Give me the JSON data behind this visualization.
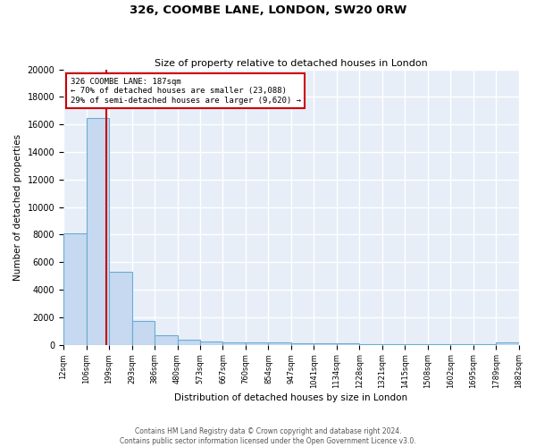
{
  "title": "326, COOMBE LANE, LONDON, SW20 0RW",
  "subtitle": "Size of property relative to detached houses in London",
  "xlabel": "Distribution of detached houses by size in London",
  "ylabel": "Number of detached properties",
  "bin_edges": [
    12,
    106,
    199,
    293,
    386,
    480,
    573,
    667,
    760,
    854,
    947,
    1041,
    1134,
    1228,
    1321,
    1415,
    1508,
    1602,
    1695,
    1789,
    1882
  ],
  "bar_heights": [
    8100,
    16500,
    5300,
    1700,
    700,
    350,
    250,
    170,
    150,
    150,
    100,
    80,
    80,
    70,
    60,
    55,
    50,
    40,
    35,
    150
  ],
  "bar_color": "#c6d9f0",
  "bar_edge_color": "#6aacd4",
  "red_line_x": 187,
  "annotation_title": "326 COOMBE LANE: 187sqm",
  "annotation_line1": "← 70% of detached houses are smaller (23,088)",
  "annotation_line2": "29% of semi-detached houses are larger (9,620) →",
  "annotation_box_color": "#ffffff",
  "annotation_border_color": "#cc0000",
  "red_line_color": "#cc0000",
  "background_color": "#e8eef8",
  "grid_color": "#ffffff",
  "ylim": [
    0,
    20000
  ],
  "yticks": [
    0,
    2000,
    4000,
    6000,
    8000,
    10000,
    12000,
    14000,
    16000,
    18000,
    20000
  ],
  "footer_line1": "Contains HM Land Registry data © Crown copyright and database right 2024.",
  "footer_line2": "Contains public sector information licensed under the Open Government Licence v3.0."
}
